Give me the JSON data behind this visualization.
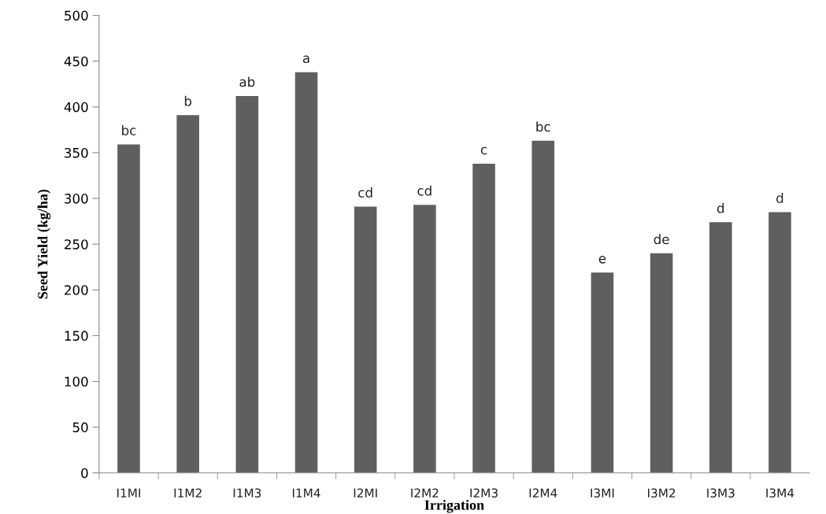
{
  "chart_data": {
    "type": "bar",
    "xlabel": "Irrigation",
    "ylabel": "Seed Yield (kg/ha)",
    "categories": [
      "I1MI",
      "I1M2",
      "I1M3",
      "I1M4",
      "I2MI",
      "I2M2",
      "I2M3",
      "I2M4",
      "I3MI",
      "I3M2",
      "I3M3",
      "I3M4"
    ],
    "series": [
      {
        "color": "#5f5f5f",
        "values": [
          359,
          391,
          412,
          438,
          291,
          293,
          338,
          363,
          219,
          240,
          274,
          285
        ]
      }
    ],
    "ylim": [
      0,
      500
    ],
    "yticks": [
      0,
      50,
      100,
      150,
      200,
      250,
      300,
      350,
      400,
      450,
      500
    ],
    "grid": false,
    "legend": false,
    "annotations": [
      {
        "text": "bc",
        "x": "I1MI",
        "y": 359
      },
      {
        "text": "b",
        "x": "I1M2",
        "y": 391
      },
      {
        "text": "ab",
        "x": "I1M3",
        "y": 412
      },
      {
        "text": "a",
        "x": "I1M4",
        "y": 438
      },
      {
        "text": "cd",
        "x": "I2MI",
        "y": 291
      },
      {
        "text": "cd",
        "x": "I2M2",
        "y": 293
      },
      {
        "text": "c",
        "x": "I2M3",
        "y": 338
      },
      {
        "text": "bc",
        "x": "I2M4",
        "y": 363
      },
      {
        "text": "e",
        "x": "I3MI",
        "y": 219
      },
      {
        "text": "de",
        "x": "I3M2",
        "y": 240
      },
      {
        "text": "d",
        "x": "I3M3",
        "y": 274
      },
      {
        "text": "d",
        "x": "I3M4",
        "y": 285
      }
    ]
  }
}
